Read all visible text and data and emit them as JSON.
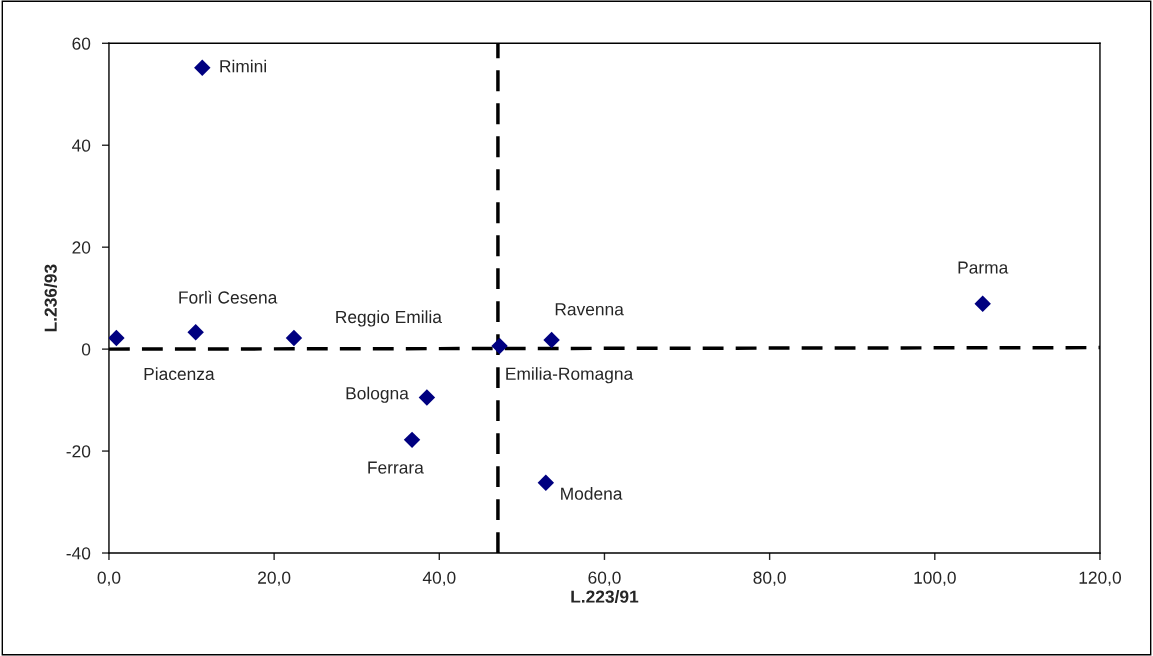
{
  "chart_data": {
    "type": "scatter",
    "xlabel": "L.223/91",
    "ylabel": "L.236/93",
    "series": [
      {
        "color": "#000080",
        "marker": "diamond",
        "x": [
          0.9,
          10.5,
          11.3,
          22.4,
          47.3,
          53.6,
          38.5,
          36.7,
          52.9,
          105.8
        ],
        "values": [
          2.2,
          3.3,
          55.2,
          2.2,
          0.6,
          1.8,
          -9.5,
          -17.8,
          -26.2,
          8.9
        ]
      },
      {
        "type": "line",
        "color": "#000000",
        "line_style": "dashed",
        "marker": "none",
        "x": [
          0,
          120
        ],
        "values": [
          0,
          0.3
        ]
      }
    ],
    "annotations": [
      {
        "text": "Piacenza",
        "x": 0.9,
        "y": 2.2
      },
      {
        "text": "Forlì Cesena",
        "x": 10.5,
        "y": 3.3
      },
      {
        "text": "Rimini",
        "x": 11.3,
        "y": 55.2
      },
      {
        "text": "Reggio Emilia",
        "x": 22.4,
        "y": 2.2
      },
      {
        "text": "Emilia-Romagna",
        "x": 47.3,
        "y": 0.6
      },
      {
        "text": "Ravenna",
        "x": 53.6,
        "y": 1.8
      },
      {
        "text": "Bologna",
        "x": 38.5,
        "y": -9.5
      },
      {
        "text": "Ferrara",
        "x": 36.7,
        "y": -17.8
      },
      {
        "text": "Modena",
        "x": 52.9,
        "y": -26.2
      },
      {
        "text": "Parma",
        "x": 105.8,
        "y": 8.9
      }
    ],
    "ref_lines": [
      {
        "axis": "x",
        "value": 47.1,
        "color": "#000000",
        "line_style": "dashed"
      }
    ],
    "xlim": [
      0,
      120
    ],
    "ylim": [
      -40,
      60
    ],
    "xticks": [
      {
        "value": 0,
        "label": "0,0"
      },
      {
        "value": 20,
        "label": "20,0"
      },
      {
        "value": 40,
        "label": "40,0"
      },
      {
        "value": 60,
        "label": "60,0"
      },
      {
        "value": 80,
        "label": "80,0"
      },
      {
        "value": 100,
        "label": "100,0"
      },
      {
        "value": 120,
        "label": "120,0"
      }
    ],
    "yticks": [
      {
        "value": -40,
        "label": "-40"
      },
      {
        "value": -20,
        "label": "-20"
      },
      {
        "value": 0,
        "label": "0"
      },
      {
        "value": 20,
        "label": "20"
      },
      {
        "value": 40,
        "label": "40"
      },
      {
        "value": 60,
        "label": "60"
      }
    ],
    "grid": false,
    "legend": false
  }
}
